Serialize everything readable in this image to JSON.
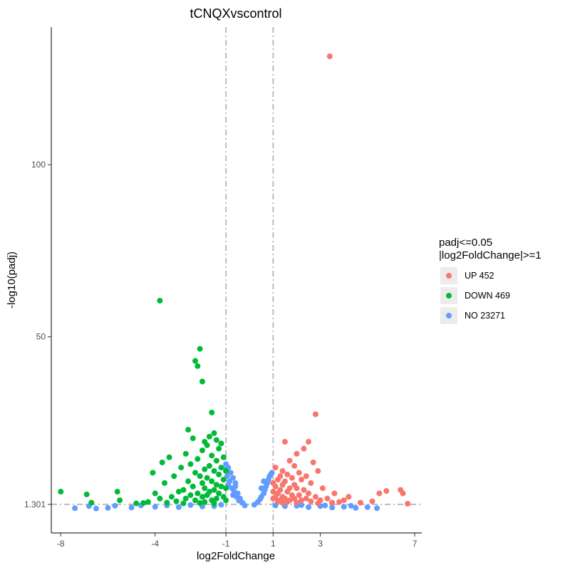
{
  "chart_data": {
    "type": "scatter",
    "title": "tCNQXvscontrol",
    "xlabel": "log2FoldChange",
    "ylabel": "-log10(padj)",
    "xlim": [
      -8.4,
      7.3
    ],
    "ylim": [
      -7,
      140
    ],
    "xticks": [
      -8,
      -4,
      -1,
      1,
      3,
      7
    ],
    "xtick_labels": [
      "-8",
      "-4",
      "-1",
      "1",
      "3",
      "7"
    ],
    "yticks": [
      1.301,
      50,
      100
    ],
    "ytick_labels": [
      "1.301",
      "50",
      "100"
    ],
    "threshold_lines": {
      "x": [
        -1,
        1
      ],
      "y": 1.301
    },
    "legend": {
      "title_lines": [
        "padj<=0.05",
        "|log2FoldChange|>=1"
      ],
      "position": "right",
      "entries": [
        {
          "label": "UP 452",
          "color": "#F8766D"
        },
        {
          "label": "DOWN 469",
          "color": "#00BA38"
        },
        {
          "label": "NO 23271",
          "color": "#619CFF"
        }
      ]
    },
    "series": [
      {
        "name": "UP 452",
        "color": "#F8766D",
        "points": [
          [
            3.4,
            131.5
          ],
          [
            2.8,
            27.5
          ],
          [
            1.5,
            19.5
          ],
          [
            2.5,
            19.5
          ],
          [
            2.3,
            17.5
          ],
          [
            2.0,
            16.0
          ],
          [
            1.7,
            14.0
          ],
          [
            2.7,
            13.5
          ],
          [
            1.9,
            12.5
          ],
          [
            1.1,
            12.0
          ],
          [
            2.9,
            11.0
          ],
          [
            1.4,
            11.0
          ],
          [
            2.1,
            10.5
          ],
          [
            1.6,
            10.0
          ],
          [
            1.3,
            9.5
          ],
          [
            2.4,
            9.5
          ],
          [
            1.8,
            9.0
          ],
          [
            1.2,
            8.5
          ],
          [
            2.2,
            8.5
          ],
          [
            1.5,
            8.0
          ],
          [
            1.0,
            7.5
          ],
          [
            2.6,
            7.5
          ],
          [
            1.9,
            7.0
          ],
          [
            1.4,
            7.0
          ],
          [
            3.1,
            6.0
          ],
          [
            1.1,
            6.5
          ],
          [
            1.7,
            6.0
          ],
          [
            2.0,
            6.0
          ],
          [
            1.3,
            5.5
          ],
          [
            2.3,
            5.5
          ],
          [
            1.6,
            5.0
          ],
          [
            1.0,
            5.0
          ],
          [
            2.5,
            4.5
          ],
          [
            1.2,
            4.5
          ],
          [
            1.8,
            4.0
          ],
          [
            3.6,
            4.5
          ],
          [
            2.1,
            4.0
          ],
          [
            1.4,
            3.5
          ],
          [
            1.1,
            3.5
          ],
          [
            2.8,
            3.5
          ],
          [
            1.9,
            3.0
          ],
          [
            1.5,
            3.0
          ],
          [
            1.0,
            3.0
          ],
          [
            2.4,
            3.0
          ],
          [
            3.3,
            3.0
          ],
          [
            1.3,
            2.5
          ],
          [
            2.2,
            2.5
          ],
          [
            1.7,
            2.5
          ],
          [
            3.0,
            2.5
          ],
          [
            1.2,
            2.2
          ],
          [
            2.6,
            2.2
          ],
          [
            1.6,
            2.0
          ],
          [
            3.8,
            2.0
          ],
          [
            5.5,
            4.5
          ],
          [
            5.8,
            5.2
          ],
          [
            6.4,
            5.5
          ],
          [
            6.5,
            4.5
          ],
          [
            4.2,
            3.5
          ],
          [
            4.0,
            2.5
          ],
          [
            5.2,
            2.2
          ],
          [
            6.7,
            1.5
          ],
          [
            4.7,
            1.8
          ],
          [
            3.5,
            1.8
          ],
          [
            2.9,
            1.6
          ],
          [
            2.0,
            1.8
          ],
          [
            1.4,
            1.7
          ]
        ]
      },
      {
        "name": "DOWN 469",
        "color": "#00BA38",
        "points": [
          [
            -3.8,
            60.5
          ],
          [
            -2.1,
            46.5
          ],
          [
            -2.3,
            43.0
          ],
          [
            -2.2,
            41.5
          ],
          [
            -2.0,
            37.0
          ],
          [
            -1.6,
            28.0
          ],
          [
            -2.6,
            23.0
          ],
          [
            -1.5,
            22.0
          ],
          [
            -1.7,
            21.0
          ],
          [
            -2.4,
            20.5
          ],
          [
            -1.4,
            20.0
          ],
          [
            -1.9,
            19.5
          ],
          [
            -1.2,
            19.0
          ],
          [
            -1.8,
            18.5
          ],
          [
            -1.3,
            17.5
          ],
          [
            -2.0,
            17.0
          ],
          [
            -2.7,
            16.0
          ],
          [
            -1.6,
            15.5
          ],
          [
            -1.1,
            15.0
          ],
          [
            -2.2,
            14.5
          ],
          [
            -1.4,
            14.0
          ],
          [
            -3.4,
            15.0
          ],
          [
            -3.7,
            13.5
          ],
          [
            -2.5,
            13.0
          ],
          [
            -1.7,
            12.5
          ],
          [
            -1.2,
            12.0
          ],
          [
            -2.9,
            12.0
          ],
          [
            -1.9,
            11.5
          ],
          [
            -1.5,
            11.0
          ],
          [
            -1.0,
            11.0
          ],
          [
            -2.3,
            10.5
          ],
          [
            -4.1,
            10.5
          ],
          [
            -1.3,
            10.0
          ],
          [
            -2.1,
            9.5
          ],
          [
            -1.8,
            9.0
          ],
          [
            -3.2,
            9.5
          ],
          [
            -1.1,
            8.5
          ],
          [
            -2.6,
            8.0
          ],
          [
            -1.6,
            8.0
          ],
          [
            -2.0,
            7.5
          ],
          [
            -1.4,
            7.0
          ],
          [
            -3.6,
            7.5
          ],
          [
            -1.2,
            6.5
          ],
          [
            -2.4,
            6.5
          ],
          [
            -1.9,
            6.0
          ],
          [
            -1.0,
            6.0
          ],
          [
            -2.8,
            5.5
          ],
          [
            -1.5,
            5.5
          ],
          [
            -3.0,
            5.0
          ],
          [
            -1.7,
            5.0
          ],
          [
            -2.2,
            4.5
          ],
          [
            -1.3,
            4.5
          ],
          [
            -4.0,
            4.5
          ],
          [
            -2.5,
            4.0
          ],
          [
            -1.8,
            4.0
          ],
          [
            -1.1,
            3.5
          ],
          [
            -3.3,
            3.5
          ],
          [
            -2.0,
            3.5
          ],
          [
            -1.4,
            3.0
          ],
          [
            -2.7,
            3.0
          ],
          [
            -3.8,
            3.0
          ],
          [
            -1.6,
            2.5
          ],
          [
            -2.3,
            2.5
          ],
          [
            -1.0,
            2.5
          ],
          [
            -3.1,
            2.2
          ],
          [
            -1.9,
            2.0
          ],
          [
            -4.3,
            2.0
          ],
          [
            -8.0,
            5.0
          ],
          [
            -6.9,
            4.2
          ],
          [
            -5.6,
            5.0
          ],
          [
            -5.5,
            2.5
          ],
          [
            -6.7,
            1.8
          ],
          [
            -4.8,
            1.6
          ],
          [
            -4.5,
            1.7
          ],
          [
            -3.5,
            1.8
          ],
          [
            -2.8,
            1.6
          ],
          [
            -2.1,
            1.7
          ],
          [
            -1.5,
            1.6
          ]
        ]
      },
      {
        "name": "NO 23271",
        "color": "#619CFF",
        "points": [
          [
            -7.4,
            0.2
          ],
          [
            -6.8,
            0.8
          ],
          [
            -6.5,
            0.1
          ],
          [
            -1.0,
            13.0
          ],
          [
            -0.9,
            12.0
          ],
          [
            -1.0,
            11.5
          ],
          [
            -0.8,
            10.5
          ],
          [
            -0.95,
            9.5
          ],
          [
            -0.7,
            9.0
          ],
          [
            -0.85,
            8.0
          ],
          [
            -0.9,
            7.0
          ],
          [
            -0.6,
            6.5
          ],
          [
            -0.75,
            6.0
          ],
          [
            -0.5,
            4.5
          ],
          [
            -0.65,
            5.0
          ],
          [
            -0.4,
            3.0
          ],
          [
            -0.55,
            3.5
          ],
          [
            -0.3,
            1.8
          ],
          [
            -0.45,
            2.4
          ],
          [
            -0.2,
            1.0
          ],
          [
            0.2,
            1.2
          ],
          [
            0.35,
            2.0
          ],
          [
            0.45,
            2.8
          ],
          [
            0.5,
            3.5
          ],
          [
            0.6,
            4.5
          ],
          [
            0.65,
            5.5
          ],
          [
            0.7,
            6.5
          ],
          [
            0.75,
            7.5
          ],
          [
            0.8,
            8.5
          ],
          [
            0.85,
            9.5
          ],
          [
            0.9,
            10.0
          ],
          [
            0.95,
            10.5
          ],
          [
            0.6,
            8.0
          ],
          [
            0.5,
            6.0
          ],
          [
            -0.6,
            7.5
          ],
          [
            -0.7,
            4.0
          ],
          [
            1.5,
            0.8
          ],
          [
            2.0,
            0.9
          ],
          [
            2.5,
            0.5
          ],
          [
            3.0,
            0.8
          ],
          [
            3.5,
            0.4
          ],
          [
            4.0,
            0.6
          ],
          [
            4.5,
            0.3
          ],
          [
            5.0,
            0.5
          ],
          [
            5.4,
            0.2
          ],
          [
            -1.5,
            0.8
          ],
          [
            -2.0,
            0.7
          ],
          [
            -3.0,
            0.5
          ],
          [
            -4.0,
            0.6
          ],
          [
            -5.0,
            0.4
          ],
          [
            -6.0,
            0.3
          ],
          [
            -5.7,
            0.9
          ],
          [
            -4.6,
            1.0
          ],
          [
            -3.5,
            1.0
          ],
          [
            -2.5,
            1.1
          ],
          [
            -1.2,
            1.2
          ],
          [
            1.1,
            1.0
          ],
          [
            2.2,
            1.1
          ],
          [
            3.2,
            1.0
          ],
          [
            4.3,
            0.9
          ]
        ]
      }
    ]
  }
}
